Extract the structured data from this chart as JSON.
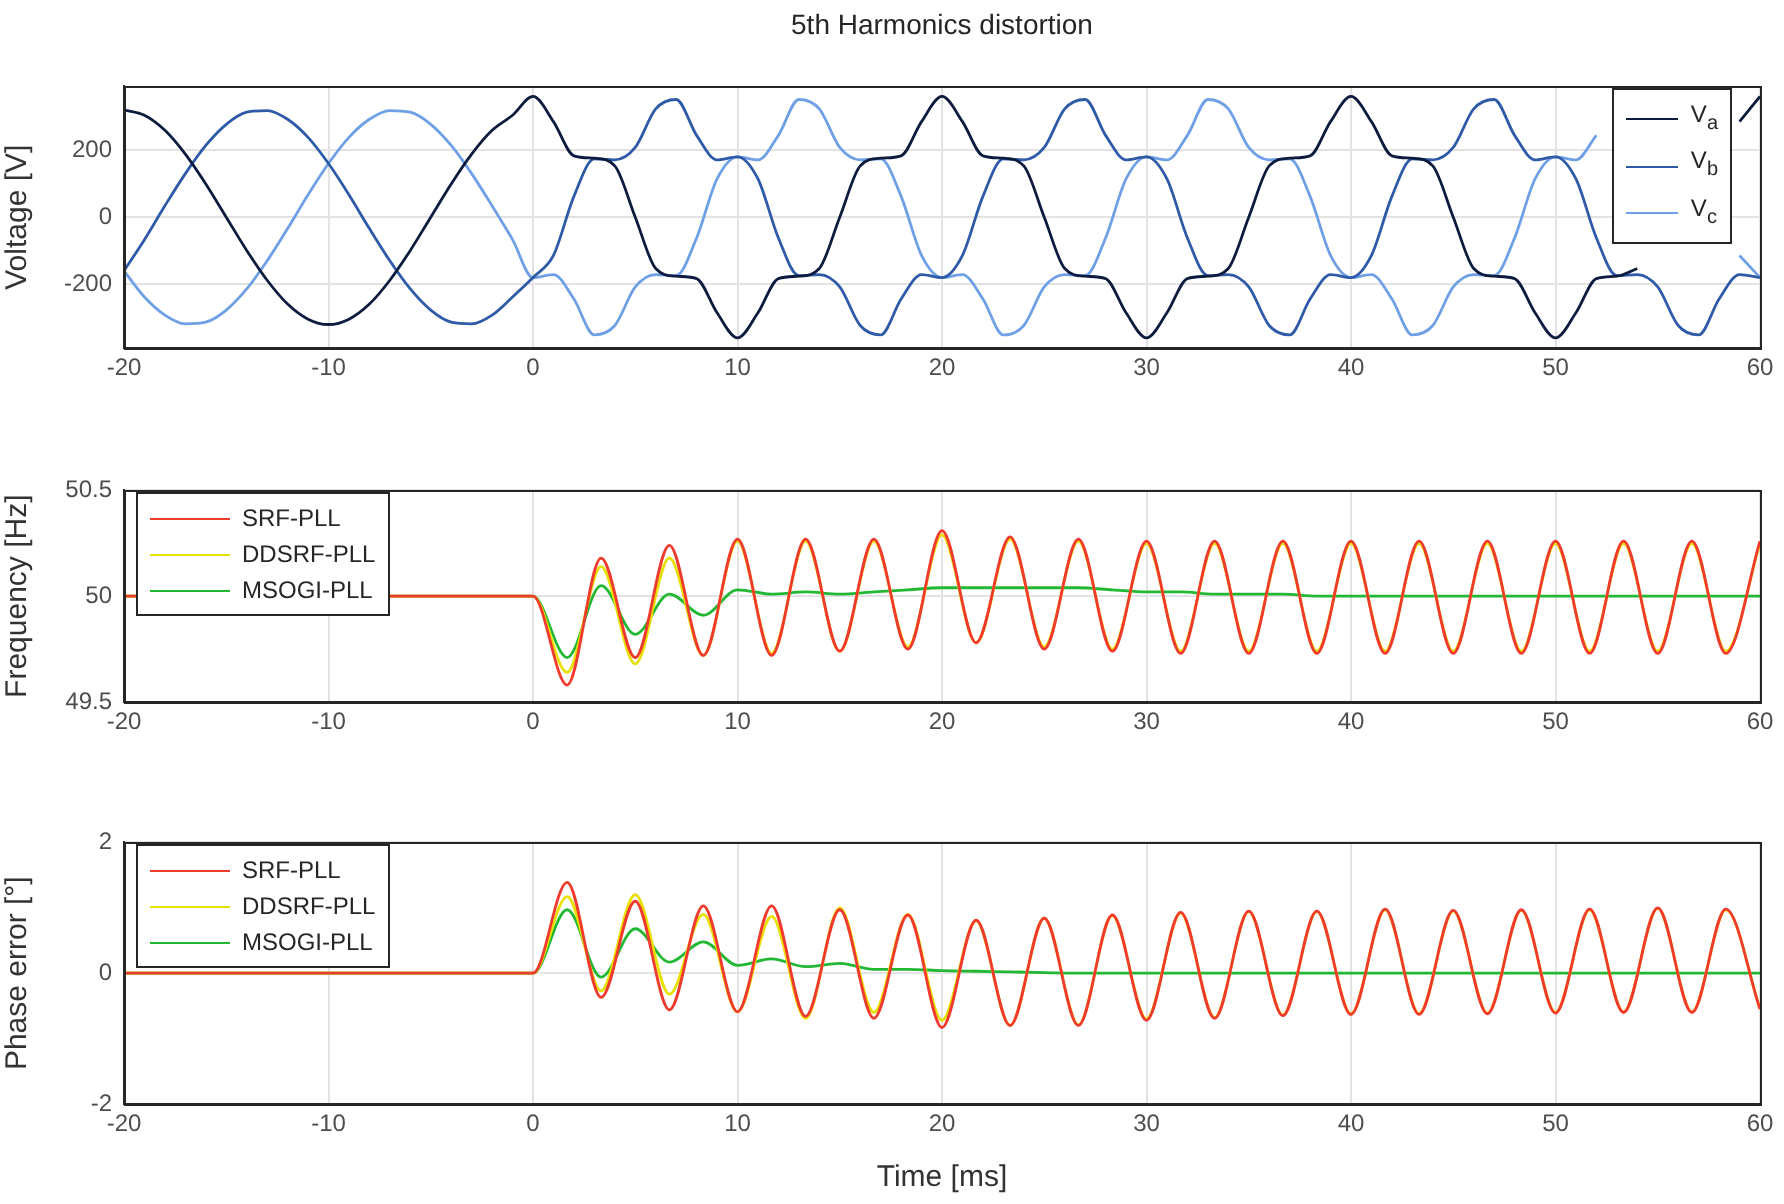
{
  "chart_data": [
    {
      "type": "line",
      "title": "5th Harmonics distortion",
      "ylabel": "Voltage [V]",
      "xlim": [
        -20,
        60
      ],
      "xticks": [
        -20,
        -10,
        0,
        10,
        20,
        30,
        40,
        50,
        60
      ],
      "ylim": [
        -390,
        390
      ],
      "yticks": [
        -200,
        0,
        200
      ],
      "grid": true,
      "legend": "top right",
      "x": [
        -20,
        -19,
        -18,
        -17,
        -16,
        -15,
        -14,
        -13,
        -12,
        -11,
        -10,
        -9,
        -8,
        -7,
        -6,
        -5,
        -4,
        -3,
        -2,
        -1,
        0,
        1,
        2,
        3,
        4,
        5,
        6,
        7,
        8,
        9,
        10,
        11,
        12,
        13,
        14,
        15,
        16,
        17,
        18,
        19,
        20,
        21,
        22,
        23,
        24,
        25,
        26,
        27,
        28,
        29,
        30,
        31,
        32,
        33,
        34,
        35,
        36,
        37,
        38,
        39,
        40,
        41,
        42,
        43,
        44,
        45,
        46,
        47,
        48,
        49,
        50,
        51,
        52,
        53,
        54,
        55,
        56,
        57,
        58,
        59,
        60
      ],
      "series": [
        {
          "name": "V$_{a}$",
          "color": "#0d1b3e",
          "values": [
            320,
            304,
            259,
            188,
            99,
            0,
            -99,
            -188,
            -259,
            -304,
            -320,
            -304,
            -259,
            -188,
            -99,
            0,
            99,
            188,
            259,
            304,
            360,
            285,
            183,
            176,
            153,
            0,
            -153,
            -176,
            -183,
            -285,
            -360,
            -285,
            -183,
            -176,
            -153,
            0,
            153,
            176,
            183,
            285,
            360,
            285,
            183,
            176,
            153,
            0,
            -153,
            -176,
            -183,
            -285,
            -360,
            -285,
            -183,
            -176,
            -153,
            0,
            153,
            176,
            183,
            285,
            360,
            285,
            183,
            176,
            153,
            0,
            -153,
            -176,
            -183,
            -285,
            -360,
            -285,
            -183,
            -176,
            -153,
            null,
            null,
            null,
            null,
            285,
            360
          ]
        },
        {
          "name": "V$_{b}$",
          "color": "#2e5aa8",
          "values": [
            -160,
            -67,
            34,
            130,
            214,
            277,
            313,
            318,
            292,
            238,
            160,
            67,
            -34,
            -130,
            -214,
            -277,
            -313,
            -318,
            -292,
            -238,
            -180,
            -114,
            62,
            174,
            171,
            208,
            323,
            351,
            244,
            171,
            180,
            114,
            -62,
            -174,
            -171,
            -208,
            -323,
            -351,
            -244,
            -171,
            -180,
            -114,
            62,
            174,
            171,
            208,
            323,
            351,
            244,
            171,
            180,
            114,
            -62,
            -174,
            -171,
            -208,
            -323,
            -351,
            -244,
            -171,
            -180,
            -114,
            62,
            174,
            171,
            208,
            323,
            351,
            244,
            171,
            180,
            114,
            -62,
            -174,
            -171,
            -208,
            -323,
            -351,
            -244,
            -171,
            -180
          ]
        },
        {
          "name": "V$_{c}$",
          "color": "#6fa0e6",
          "values": [
            -160,
            -238,
            -292,
            -318,
            -313,
            -277,
            -214,
            -130,
            -34,
            67,
            160,
            238,
            292,
            318,
            313,
            277,
            214,
            130,
            34,
            -67,
            -180,
            -171,
            -244,
            -351,
            -323,
            -208,
            -171,
            -174,
            -62,
            114,
            180,
            171,
            244,
            351,
            323,
            208,
            171,
            174,
            62,
            -114,
            -180,
            -171,
            -244,
            -351,
            -323,
            -208,
            -171,
            -174,
            -62,
            114,
            180,
            171,
            244,
            351,
            323,
            208,
            171,
            174,
            62,
            -114,
            -180,
            -171,
            -244,
            -351,
            -323,
            -208,
            -171,
            -174,
            -62,
            114,
            180,
            171,
            244,
            null,
            null,
            null,
            null,
            null,
            null,
            -114,
            -180
          ]
        }
      ]
    },
    {
      "type": "line",
      "ylabel": "Frequency [Hz]",
      "xlim": [
        -20,
        60
      ],
      "xticks": [
        -20,
        -10,
        0,
        10,
        20,
        30,
        40,
        50,
        60
      ],
      "ylim": [
        49.5,
        50.5
      ],
      "yticks": [
        49.5,
        50,
        50.5
      ],
      "grid": true,
      "legend": "top left",
      "x": [
        -20,
        0,
        1.67,
        3.33,
        5,
        6.67,
        8.33,
        10,
        11.67,
        13.33,
        15,
        16.67,
        18.33,
        20,
        21.67,
        23.33,
        25,
        26.67,
        28.33,
        30,
        31.67,
        33.33,
        35,
        36.67,
        38.33,
        40,
        41.67,
        43.33,
        45,
        46.67,
        48.33,
        50,
        51.67,
        53.33,
        55,
        56.67,
        58.33,
        60
      ],
      "series": [
        {
          "name": "SRF-PLL",
          "color": "#f03a2e",
          "values": [
            50,
            50,
            49.58,
            50.18,
            49.71,
            50.24,
            49.72,
            50.27,
            49.72,
            50.27,
            49.74,
            50.27,
            49.75,
            50.31,
            49.78,
            50.28,
            49.75,
            50.27,
            49.74,
            50.26,
            49.73,
            50.26,
            49.73,
            50.26,
            49.73,
            50.26,
            49.73,
            50.26,
            49.73,
            50.26,
            49.73,
            50.26,
            49.73,
            50.26,
            49.73,
            50.26,
            49.73,
            50.26
          ]
        },
        {
          "name": "DDSRF-PLL",
          "color": "#e8e000",
          "values": [
            50,
            50,
            49.64,
            50.14,
            49.68,
            50.18,
            49.72,
            50.26,
            49.73,
            50.26,
            49.74,
            50.26,
            49.76,
            50.29,
            49.78,
            50.27,
            49.76,
            50.26,
            49.75,
            50.25,
            49.74,
            50.25,
            49.74,
            50.25,
            49.74,
            50.25,
            49.74,
            50.25,
            49.74,
            50.25,
            49.74,
            50.25,
            49.74,
            50.25,
            49.74,
            50.25,
            49.74,
            50.25
          ]
        },
        {
          "name": "MSOGI-PLL",
          "color": "#22b833",
          "values": [
            50,
            50,
            49.71,
            50.05,
            49.82,
            50.01,
            49.91,
            50.03,
            50.01,
            50.02,
            50.01,
            50.02,
            50.03,
            50.04,
            50.04,
            50.04,
            50.04,
            50.04,
            50.03,
            50.02,
            50.02,
            50.01,
            50.01,
            50.01,
            50,
            50,
            50,
            50,
            50,
            50,
            50,
            50,
            50,
            50,
            50,
            50,
            50,
            50
          ]
        }
      ]
    },
    {
      "type": "line",
      "ylabel": "Phase error [°]",
      "xlabel": "Time [ms]",
      "xlim": [
        -20,
        60
      ],
      "xticks": [
        -20,
        -10,
        0,
        10,
        20,
        30,
        40,
        50,
        60
      ],
      "ylim": [
        -2,
        2
      ],
      "yticks": [
        -2,
        0,
        2
      ],
      "grid": true,
      "legend": "top left",
      "x": [
        -20,
        0,
        1.67,
        3.33,
        5,
        6.67,
        8.33,
        10,
        11.67,
        13.33,
        15,
        16.67,
        18.33,
        20,
        21.67,
        23.33,
        25,
        26.67,
        28.33,
        30,
        31.67,
        33.33,
        35,
        36.67,
        38.33,
        40,
        41.67,
        43.33,
        45,
        46.67,
        48.33,
        50,
        51.67,
        53.33,
        55,
        56.67,
        58.33,
        60
      ],
      "series": [
        {
          "name": "SRF-PLL",
          "color": "#f03a2e",
          "values": [
            0,
            0,
            1.39,
            -0.37,
            1.1,
            -0.56,
            1.03,
            -0.59,
            1.03,
            -0.66,
            0.97,
            -0.69,
            0.89,
            -0.83,
            0.81,
            -0.8,
            0.84,
            -0.8,
            0.89,
            -0.72,
            0.93,
            -0.69,
            0.95,
            -0.65,
            0.95,
            -0.63,
            0.98,
            -0.63,
            0.96,
            -0.62,
            0.97,
            -0.61,
            0.98,
            -0.6,
            1.0,
            -0.6,
            0.98,
            -0.55
          ]
        },
        {
          "name": "DDSRF-PLL",
          "color": "#e8e000",
          "values": [
            0,
            0,
            1.17,
            -0.27,
            1.2,
            -0.32,
            0.9,
            -0.59,
            0.87,
            -0.69,
            1.0,
            -0.6,
            0.9,
            -0.72,
            0.8,
            -0.8,
            0.84,
            -0.79,
            0.88,
            -0.7,
            0.92,
            -0.68,
            0.94,
            -0.64,
            0.94,
            -0.62,
            0.97,
            -0.62,
            0.95,
            -0.61,
            0.96,
            -0.6,
            0.97,
            -0.59,
            0.99,
            -0.59,
            0.97,
            -0.54
          ]
        },
        {
          "name": "MSOGI-PLL",
          "color": "#22b833",
          "values": [
            0,
            0,
            0.97,
            -0.06,
            0.68,
            0.17,
            0.48,
            0.12,
            0.22,
            0.1,
            0.15,
            0.06,
            0.06,
            0.04,
            0.03,
            0.02,
            0.01,
            0,
            0,
            0,
            0,
            0,
            0,
            0,
            0,
            0,
            0,
            0,
            0,
            0,
            0,
            0,
            0,
            0,
            0,
            0,
            0,
            0
          ]
        }
      ]
    }
  ]
}
